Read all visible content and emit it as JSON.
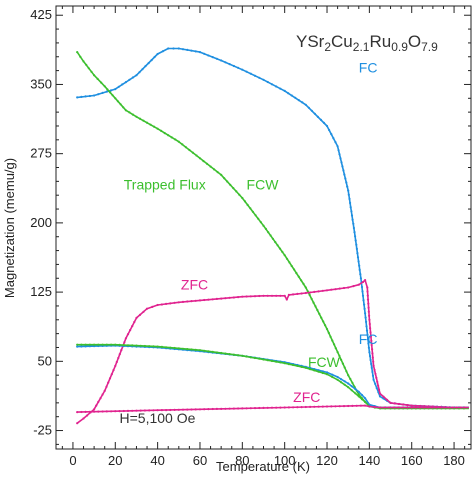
{
  "chart_data": {
    "type": "line",
    "formula": {
      "parts": [
        {
          "t": "YSr",
          "sub": false
        },
        {
          "t": "2",
          "sub": true
        },
        {
          "t": "Cu",
          "sub": false
        },
        {
          "t": "2.1",
          "sub": true
        },
        {
          "t": "Ru",
          "sub": false
        },
        {
          "t": "0.9",
          "sub": true
        },
        {
          "t": "O",
          "sub": false
        },
        {
          "t": "7.9",
          "sub": true
        }
      ]
    },
    "xlabel": "Temperature (K)",
    "ylabel": "Magnetization (memu/g)",
    "xlim": [
      -8,
      188
    ],
    "ylim": [
      -45,
      435
    ],
    "xticks": [
      0,
      20,
      40,
      60,
      80,
      100,
      120,
      140,
      160,
      180
    ],
    "xtick_labels": [
      "0",
      "20",
      "40",
      "60",
      "80",
      "100",
      "120",
      "140",
      "160",
      "180"
    ],
    "yticks": [
      -25,
      50,
      125,
      200,
      275,
      350,
      425
    ],
    "ytick_labels": [
      "-25",
      "50",
      "125",
      "200",
      "275",
      "350",
      "425"
    ],
    "colors": {
      "fc": "#1f8fe0",
      "fcw": "#3cbf2e",
      "zfc": "#e0238f"
    },
    "series": [
      {
        "name": "FC",
        "color": "#1f8fe0",
        "x": [
          2,
          10,
          20,
          30,
          40,
          45,
          50,
          60,
          70,
          80,
          90,
          100,
          110,
          120,
          125,
          130,
          133,
          136,
          138,
          140,
          142,
          145,
          150,
          160,
          170,
          180,
          187
        ],
        "y": [
          336,
          338,
          345,
          360,
          383,
          389,
          389,
          385,
          376,
          366,
          355,
          343,
          328,
          305,
          283,
          235,
          190,
          140,
          102,
          60,
          30,
          12,
          5,
          2,
          1,
          0,
          0
        ]
      },
      {
        "name": "Trapped Flux FCW",
        "color": "#3cbf2e",
        "x": [
          2,
          5,
          10,
          15,
          20,
          25,
          30,
          40,
          50,
          60,
          70,
          80,
          90,
          100,
          110,
          120,
          125,
          130,
          135,
          138,
          140,
          143,
          150,
          160,
          170,
          180,
          187
        ],
        "y": [
          385,
          375,
          360,
          348,
          335,
          322,
          315,
          302,
          288,
          270,
          252,
          227,
          197,
          165,
          130,
          85,
          60,
          35,
          14,
          6,
          2,
          0,
          0,
          0,
          0,
          0,
          0
        ]
      },
      {
        "name": "ZFC",
        "color": "#e0238f",
        "x": [
          2,
          5,
          10,
          15,
          20,
          25,
          30,
          35,
          40,
          50,
          60,
          70,
          80,
          90,
          100,
          101,
          102,
          110,
          120,
          130,
          135,
          137,
          138,
          139,
          140,
          142,
          145,
          150,
          160,
          170,
          180,
          187
        ],
        "y": [
          -17,
          -12,
          -2,
          18,
          45,
          75,
          97,
          107,
          111,
          114,
          116,
          118,
          120,
          121,
          121,
          117,
          122,
          124,
          127,
          130,
          133,
          136,
          138,
          130,
          95,
          45,
          15,
          5,
          2,
          1,
          0,
          0
        ]
      },
      {
        "name": "FC",
        "color": "#1f8fe0",
        "x": [
          2,
          20,
          40,
          60,
          80,
          100,
          110,
          120,
          125,
          130,
          135,
          138,
          140,
          145,
          150,
          160,
          180,
          187
        ],
        "y": [
          66,
          67,
          65,
          61,
          56,
          49,
          44,
          38,
          33,
          26,
          17,
          10,
          3,
          0,
          0,
          0,
          0,
          0
        ]
      },
      {
        "name": "FCW",
        "color": "#3cbf2e",
        "x": [
          2,
          20,
          40,
          60,
          80,
          100,
          110,
          120,
          125,
          130,
          135,
          138,
          140,
          145,
          150,
          160,
          180,
          187
        ],
        "y": [
          68,
          68,
          66,
          62,
          56,
          48,
          43,
          36,
          30,
          22,
          12,
          6,
          1,
          -1,
          -1,
          -1,
          -1,
          -1
        ]
      },
      {
        "name": "ZFC",
        "color": "#e0238f",
        "x": [
          2,
          20,
          40,
          60,
          80,
          100,
          120,
          138,
          140,
          145,
          160,
          187
        ],
        "y": [
          -5,
          -4,
          -3,
          -2,
          -1,
          0,
          1,
          2,
          1,
          0,
          0,
          0
        ]
      }
    ],
    "annotations": [
      {
        "text": "FC",
        "x": 135,
        "y": 363,
        "color": "#1f8fe0"
      },
      {
        "text": "Trapped Flux",
        "x": 24,
        "y": 236,
        "color": "#3cbf2e"
      },
      {
        "text": "FCW",
        "x": 82,
        "y": 236,
        "color": "#3cbf2e"
      },
      {
        "text": "ZFC",
        "x": 51,
        "y": 128,
        "color": "#e0238f"
      },
      {
        "text": "FC",
        "x": 135,
        "y": 69,
        "color": "#1f8fe0"
      },
      {
        "text": "FCW",
        "x": 111,
        "y": 44,
        "color": "#3cbf2e"
      },
      {
        "text": "ZFC",
        "x": 104,
        "y": 6,
        "color": "#e0238f"
      },
      {
        "text": "H=5,100 Oe",
        "x": 22,
        "y": -17,
        "color": "#333333"
      }
    ],
    "grid": false,
    "legend": "none"
  }
}
